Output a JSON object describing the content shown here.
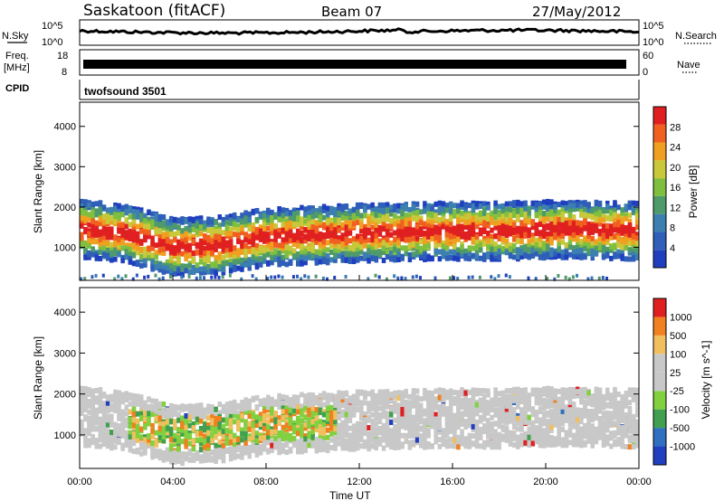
{
  "header": {
    "station": "Saskatoon (fitACF)",
    "beam": "Beam 07",
    "date": "27/May/2012"
  },
  "nsky_panel": {
    "left_label": "N.Sky",
    "right_label": "N.Search",
    "left_ticks": [
      "10^5",
      "10^0"
    ],
    "right_ticks": [
      "10^5",
      "10^0"
    ]
  },
  "freq_panel": {
    "left_label_line1": "Freq.",
    "left_label_line2": "[MHz]",
    "right_label": "Nave",
    "left_ticks": [
      "18",
      "8"
    ],
    "right_ticks": [
      "60",
      "0"
    ]
  },
  "cpid_panel": {
    "label": "CPID",
    "value": "twofsound 3501"
  },
  "colors": {
    "power": [
      "#1f3fbf",
      "#2f5fb8",
      "#3c7fb0",
      "#4f9a6a",
      "#7fbf3f",
      "#c8c83a",
      "#f0a020",
      "#f06020",
      "#e02020"
    ],
    "velocity": [
      "#2040c0",
      "#3070c0",
      "#40a050",
      "#80d040",
      "#c8c8c8",
      "#c8c8c8",
      "#f0c060",
      "#f08020",
      "#e02020"
    ]
  },
  "chart_data": [
    {
      "type": "heatmap",
      "title": "",
      "xlabel": "Time UT",
      "ylabel": "Slant Range [km]",
      "x_ticks": [
        "00:00",
        "04:00",
        "08:00",
        "12:00",
        "16:00",
        "20:00",
        "00:00"
      ],
      "x_range_hours": [
        0,
        24
      ],
      "y_ticks": [
        1000,
        2000,
        3000,
        4000
      ],
      "ylim": [
        180,
        4600
      ],
      "colorbar": {
        "label": "Power [dB]",
        "ticks": [
          "4",
          "8",
          "12",
          "16",
          "20",
          "24",
          "28"
        ],
        "range": [
          0,
          30
        ]
      },
      "traces": [
        {
          "range_center_km": [
            1450,
            1350,
            1000,
            1050,
            1250,
            1300,
            1350,
            1400,
            1400,
            1450,
            1400
          ],
          "time_hours": [
            0,
            2,
            4,
            6,
            8,
            10,
            12,
            15,
            18,
            21,
            24
          ],
          "peak_power_db": 28
        }
      ]
    },
    {
      "type": "heatmap",
      "title": "",
      "xlabel": "Time UT",
      "ylabel": "Slant Range [km]",
      "x_ticks": [
        "00:00",
        "04:00",
        "08:00",
        "12:00",
        "16:00",
        "20:00",
        "00:00"
      ],
      "x_range_hours": [
        0,
        24
      ],
      "y_ticks": [
        1000,
        2000,
        3000,
        4000
      ],
      "ylim": [
        180,
        4600
      ],
      "colorbar": {
        "label": "Velocity [m s^-1]",
        "ticks": [
          "1000",
          "500",
          "100",
          "25",
          "-25",
          "-100",
          "-500",
          "-1000"
        ],
        "range": [
          -1200,
          1200
        ]
      }
    }
  ]
}
